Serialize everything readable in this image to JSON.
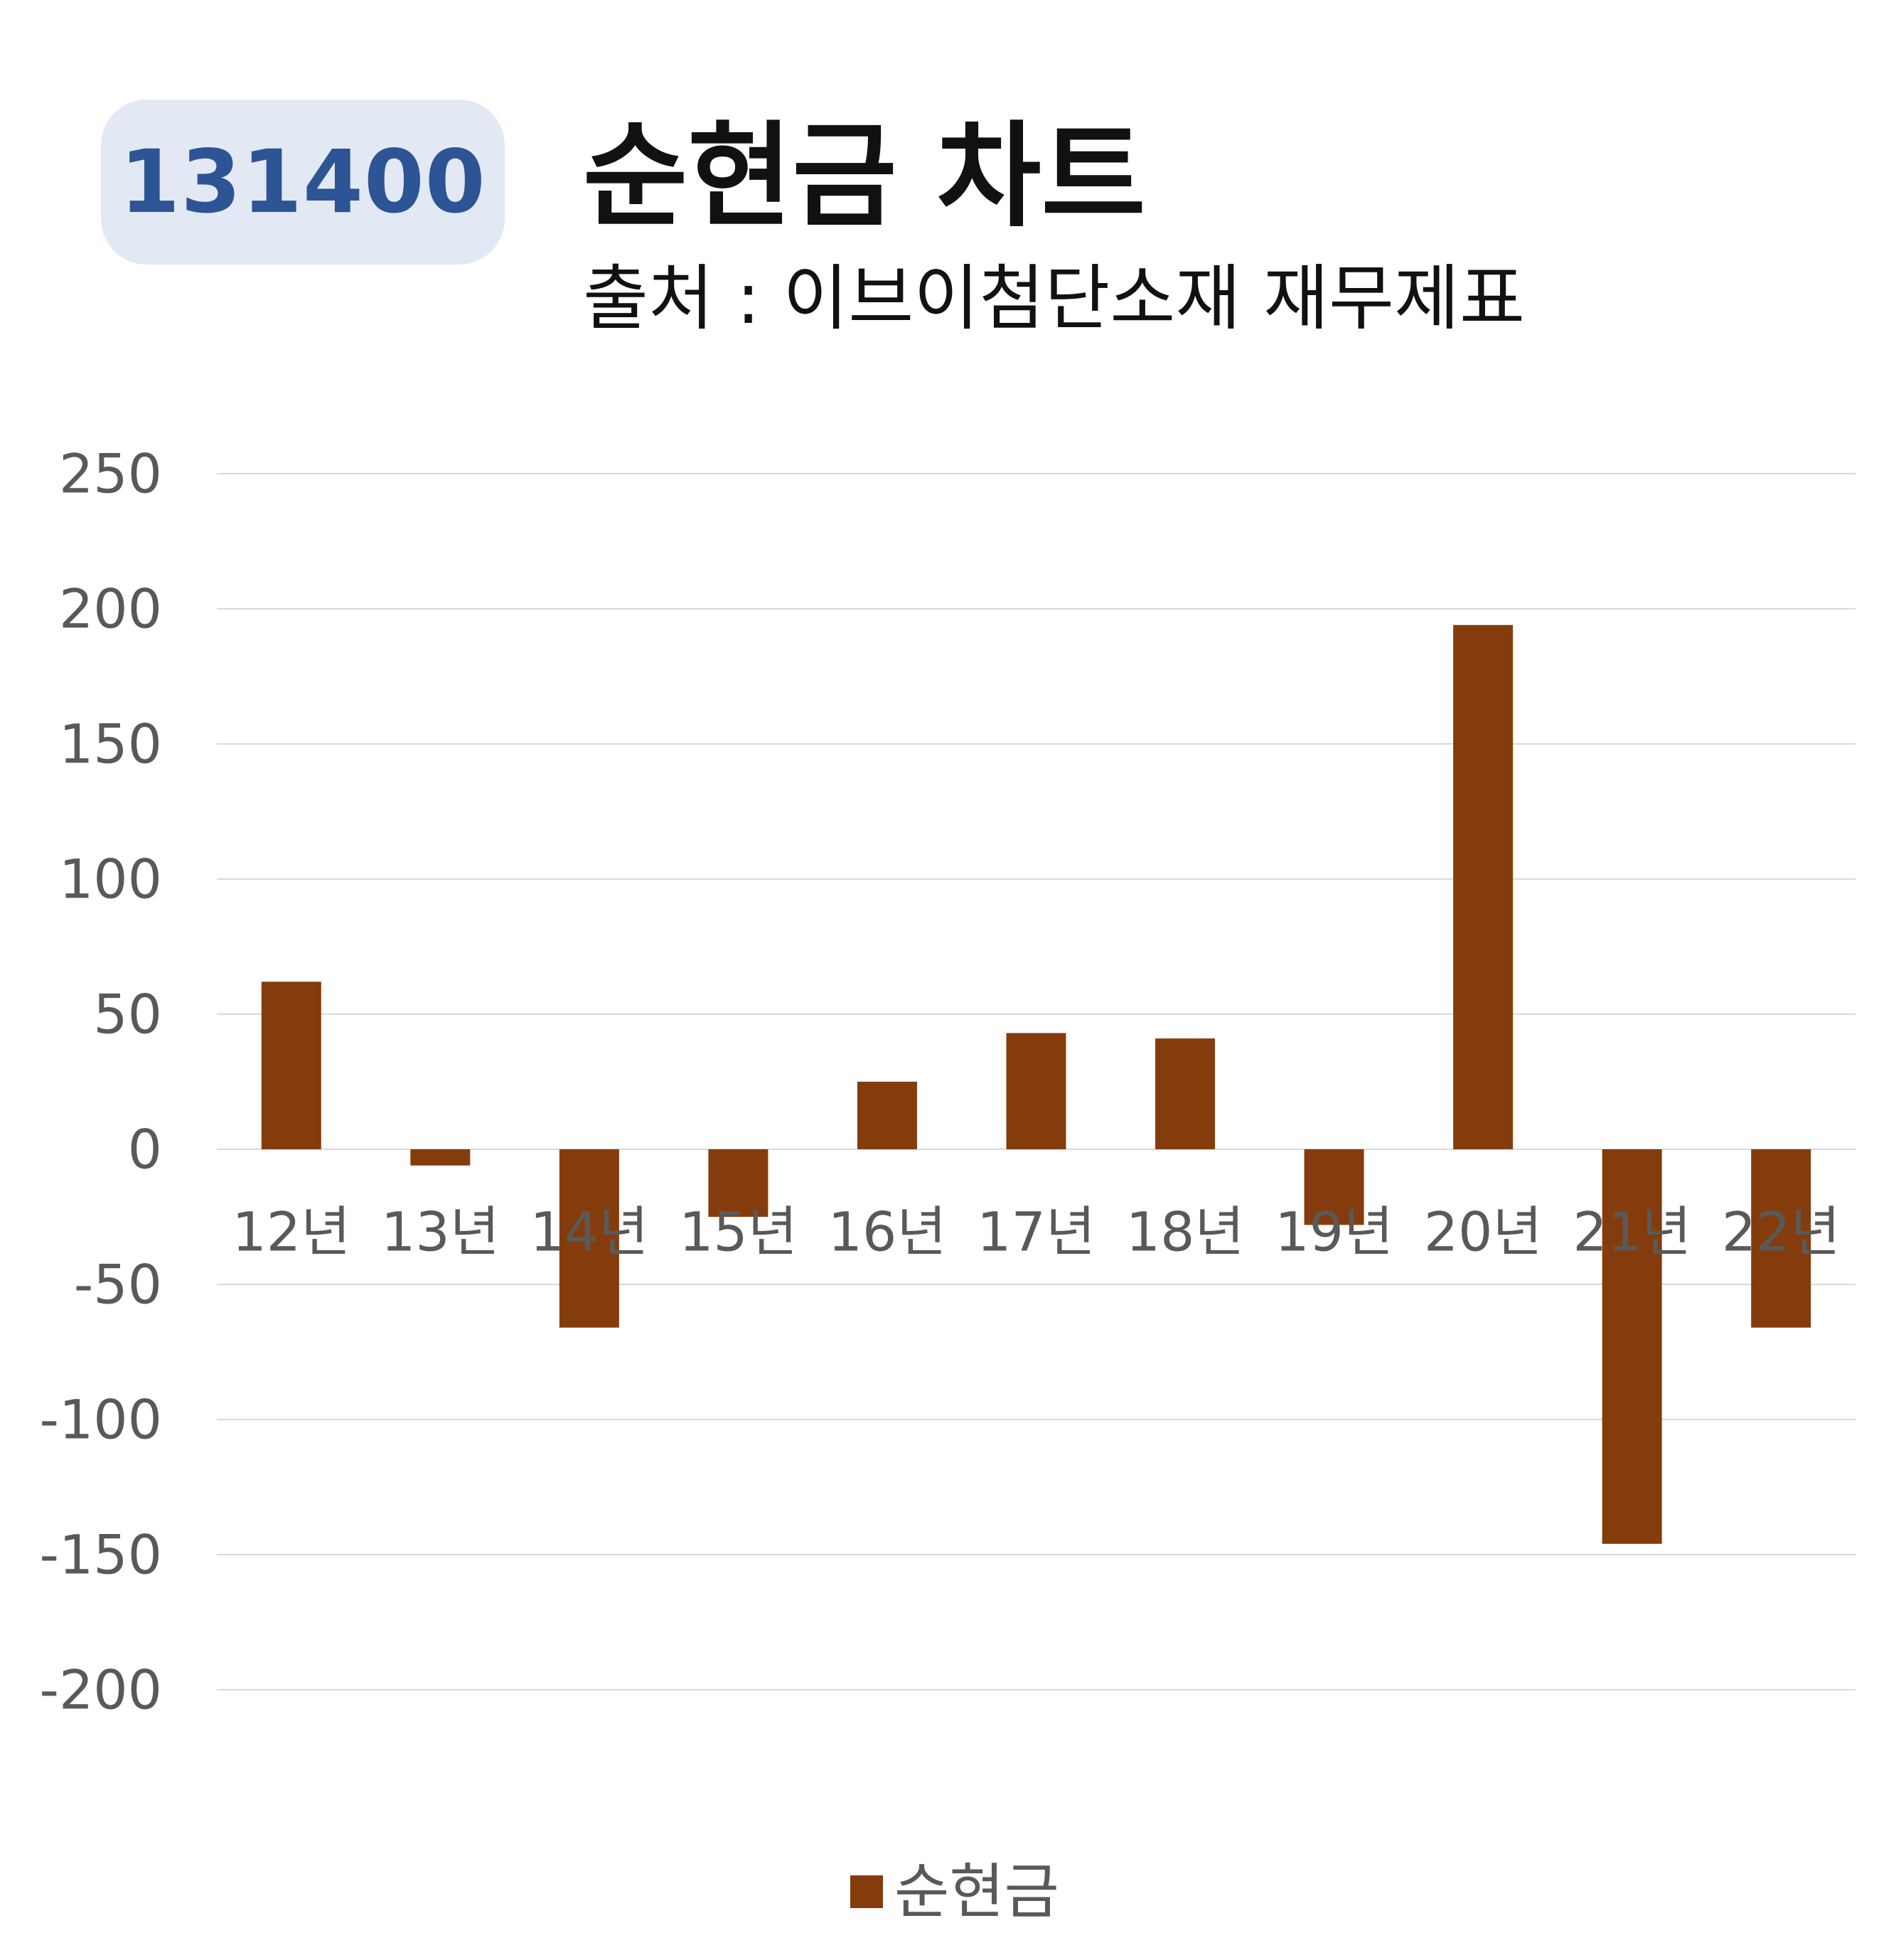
{
  "header": {
    "code": "131400",
    "title": "순현금 차트",
    "subtitle": "출처 : 이브이첨단소재 재무제표"
  },
  "colors": {
    "bar": "#843c0c",
    "badge_bg": "#e3e9f4",
    "badge_text": "#2d5494",
    "grid": "#d9d9d9",
    "axis_text": "#595959"
  },
  "chart_data": {
    "type": "bar",
    "title": "순현금 차트",
    "subtitle": "출처 : 이브이첨단소재 재무제표",
    "categories": [
      "12년",
      "13년",
      "14년",
      "15년",
      "16년",
      "17년",
      "18년",
      "19년",
      "20년",
      "21년",
      "22년"
    ],
    "series": [
      {
        "name": "순현금",
        "values": [
          62,
          -6,
          -66,
          -25,
          25,
          43,
          41,
          -28,
          194,
          -146,
          -66
        ]
      }
    ],
    "ylim": [
      -200,
      250
    ],
    "yticks": [
      250,
      200,
      150,
      100,
      50,
      0,
      -50,
      -100,
      -150,
      -200
    ],
    "grid": true,
    "legend_position": "bottom"
  }
}
